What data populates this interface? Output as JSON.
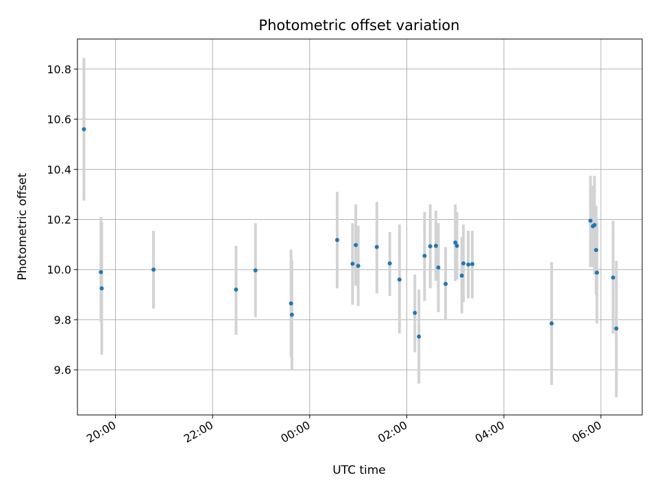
{
  "chart_data": {
    "type": "scatter",
    "title": "Photometric offset variation",
    "xlabel": "UTC time",
    "ylabel": "Photometric offset",
    "x_axis_kind": "time",
    "xlim": [
      "19:13",
      "06:51"
    ],
    "ylim": [
      9.42,
      10.92
    ],
    "xticks": [
      {
        "label": "20:00",
        "time": "20:00"
      },
      {
        "label": "22:00",
        "time": "22:00"
      },
      {
        "label": "00:00",
        "time": "00:00"
      },
      {
        "label": "02:00",
        "time": "02:00"
      },
      {
        "label": "04:00",
        "time": "04:00"
      },
      {
        "label": "06:00",
        "time": "06:00"
      }
    ],
    "yticks": [
      9.6,
      9.8,
      10.0,
      10.2,
      10.4,
      10.6,
      10.8
    ],
    "ytick_labels": [
      "9.6",
      "9.8",
      "10.0",
      "10.2",
      "10.4",
      "10.6",
      "10.8"
    ],
    "grid": true,
    "marker_color": "#1f77b4",
    "errorbar_color": "#d3d3d3",
    "points": [
      {
        "t": "19:21",
        "y": 10.56,
        "lo": 10.275,
        "hi": 10.845
      },
      {
        "t": "19:42",
        "y": 9.99,
        "lo": 9.79,
        "hi": 10.21
      },
      {
        "t": "19:43",
        "y": 9.925,
        "lo": 9.66,
        "hi": 10.19
      },
      {
        "t": "20:47",
        "y": 10.0,
        "lo": 9.845,
        "hi": 10.155
      },
      {
        "t": "22:29",
        "y": 9.92,
        "lo": 9.74,
        "hi": 10.095
      },
      {
        "t": "22:53",
        "y": 9.997,
        "lo": 9.81,
        "hi": 10.185
      },
      {
        "t": "23:37",
        "y": 9.865,
        "lo": 9.65,
        "hi": 10.08
      },
      {
        "t": "23:38",
        "y": 9.82,
        "lo": 9.6,
        "hi": 10.04
      },
      {
        "t": "00:34",
        "y": 10.118,
        "lo": 9.925,
        "hi": 10.31
      },
      {
        "t": "00:53",
        "y": 10.023,
        "lo": 9.86,
        "hi": 10.185
      },
      {
        "t": "00:57",
        "y": 10.098,
        "lo": 9.935,
        "hi": 10.26
      },
      {
        "t": "01:00",
        "y": 10.015,
        "lo": 9.855,
        "hi": 10.175
      },
      {
        "t": "01:23",
        "y": 10.09,
        "lo": 9.905,
        "hi": 10.27
      },
      {
        "t": "01:39",
        "y": 10.025,
        "lo": 9.895,
        "hi": 10.15
      },
      {
        "t": "01:51",
        "y": 9.96,
        "lo": 9.745,
        "hi": 10.18
      },
      {
        "t": "02:10",
        "y": 9.827,
        "lo": 9.67,
        "hi": 9.98
      },
      {
        "t": "02:15",
        "y": 9.733,
        "lo": 9.545,
        "hi": 9.92
      },
      {
        "t": "02:22",
        "y": 10.055,
        "lo": 9.875,
        "hi": 10.23
      },
      {
        "t": "02:29",
        "y": 10.093,
        "lo": 9.925,
        "hi": 10.26
      },
      {
        "t": "02:36",
        "y": 10.095,
        "lo": 9.955,
        "hi": 10.235
      },
      {
        "t": "02:39",
        "y": 10.008,
        "lo": 9.83,
        "hi": 10.185
      },
      {
        "t": "02:48",
        "y": 9.943,
        "lo": 9.8,
        "hi": 10.09
      },
      {
        "t": "03:00",
        "y": 10.108,
        "lo": 9.955,
        "hi": 10.26
      },
      {
        "t": "03:02",
        "y": 10.095,
        "lo": 9.96,
        "hi": 10.23
      },
      {
        "t": "03:08",
        "y": 9.976,
        "lo": 9.825,
        "hi": 10.13
      },
      {
        "t": "03:10",
        "y": 10.025,
        "lo": 9.87,
        "hi": 10.18
      },
      {
        "t": "03:16",
        "y": 10.02,
        "lo": 9.885,
        "hi": 10.155
      },
      {
        "t": "03:21",
        "y": 10.022,
        "lo": 9.885,
        "hi": 10.155
      },
      {
        "t": "04:59",
        "y": 9.785,
        "lo": 9.54,
        "hi": 10.03
      },
      {
        "t": "05:47",
        "y": 10.195,
        "lo": 10.01,
        "hi": 10.375
      },
      {
        "t": "05:50",
        "y": 10.173,
        "lo": 10.01,
        "hi": 10.335
      },
      {
        "t": "05:52",
        "y": 10.178,
        "lo": 9.98,
        "hi": 10.375
      },
      {
        "t": "05:54",
        "y": 10.078,
        "lo": 9.9,
        "hi": 10.255
      },
      {
        "t": "05:55",
        "y": 9.988,
        "lo": 9.785,
        "hi": 10.19
      },
      {
        "t": "06:15",
        "y": 9.968,
        "lo": 9.745,
        "hi": 10.195
      },
      {
        "t": "06:19",
        "y": 9.765,
        "lo": 9.49,
        "hi": 10.035
      }
    ]
  }
}
